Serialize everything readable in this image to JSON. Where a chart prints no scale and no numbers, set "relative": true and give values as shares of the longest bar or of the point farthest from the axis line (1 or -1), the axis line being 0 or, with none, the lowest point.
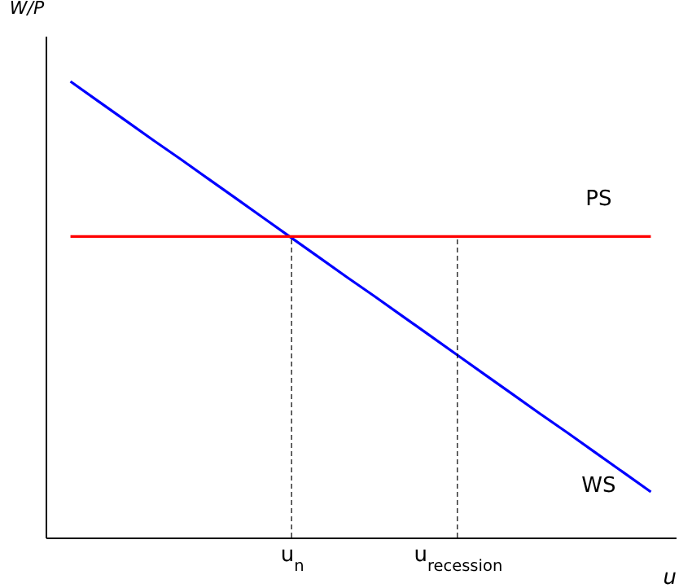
{
  "chart_data": {
    "type": "line",
    "relative": true,
    "xlabel": "u",
    "ylabel": "W/P",
    "categories": [
      null,
      null,
      null,
      null,
      null,
      null,
      null,
      null,
      "u$_{n}$",
      null,
      null,
      null,
      null,
      null,
      "u$_{recession}$",
      null,
      null,
      null,
      null,
      null,
      null,
      null
    ],
    "series": [
      {
        "name": "WS",
        "color": "#0000ff",
        "values": [
          1,
          0.957,
          0.914,
          0.871,
          0.829,
          0.786,
          0.743,
          0.7,
          0.657,
          0.614,
          0.571,
          0.529,
          0.486,
          0.443,
          0.4,
          0.357,
          0.314,
          0.271,
          0.229,
          0.186,
          0.143,
          0.1
        ]
      },
      {
        "name": "PS",
        "color": "#ff0000",
        "values": [
          0.66,
          0.66,
          0.66,
          0.66,
          0.66,
          0.66,
          0.66,
          0.66,
          0.66,
          0.66,
          0.66,
          0.66,
          0.66,
          0.66,
          0.66,
          0.66,
          0.66,
          0.66,
          0.66,
          0.66,
          0.66,
          0.66
        ]
      }
    ],
    "ref_lines": [
      {
        "axis": "x",
        "value": "u$_{n}$",
        "color": "#000000",
        "line_style": "dashed"
      },
      {
        "axis": "x",
        "value": "u$_{recession}$",
        "color": "#000000",
        "line_style": "dashed"
      }
    ],
    "legend": false,
    "grid": false,
    "marker": "none",
    "line_style": "solid"
  }
}
